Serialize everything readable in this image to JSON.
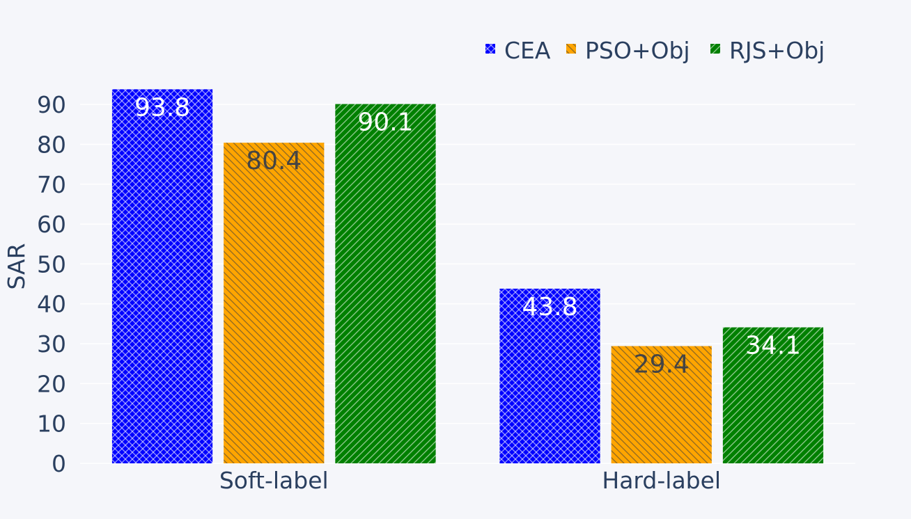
{
  "chart_data": {
    "type": "bar",
    "title": "",
    "xlabel": "",
    "ylabel": "SAR",
    "categories": [
      "Soft-label",
      "Hard-label"
    ],
    "series": [
      {
        "name": "CEA",
        "values": [
          93.8,
          43.8
        ],
        "color": "#0000ff",
        "pattern": "crosshatch",
        "label_color": "#ffffff"
      },
      {
        "name": "PSO+Obj",
        "values": [
          80.4,
          29.4
        ],
        "color": "#ffa500",
        "pattern": "backslash",
        "label_color": "#444444"
      },
      {
        "name": "RJS+Obj",
        "values": [
          90.1,
          34.1
        ],
        "color": "#008000",
        "pattern": "slash",
        "label_color": "#ffffff"
      }
    ],
    "ylim": [
      0,
      97
    ],
    "yticks": [
      0,
      10,
      20,
      30,
      40,
      50,
      60,
      70,
      80,
      90
    ],
    "grid": true,
    "legend_position": "top-right"
  }
}
